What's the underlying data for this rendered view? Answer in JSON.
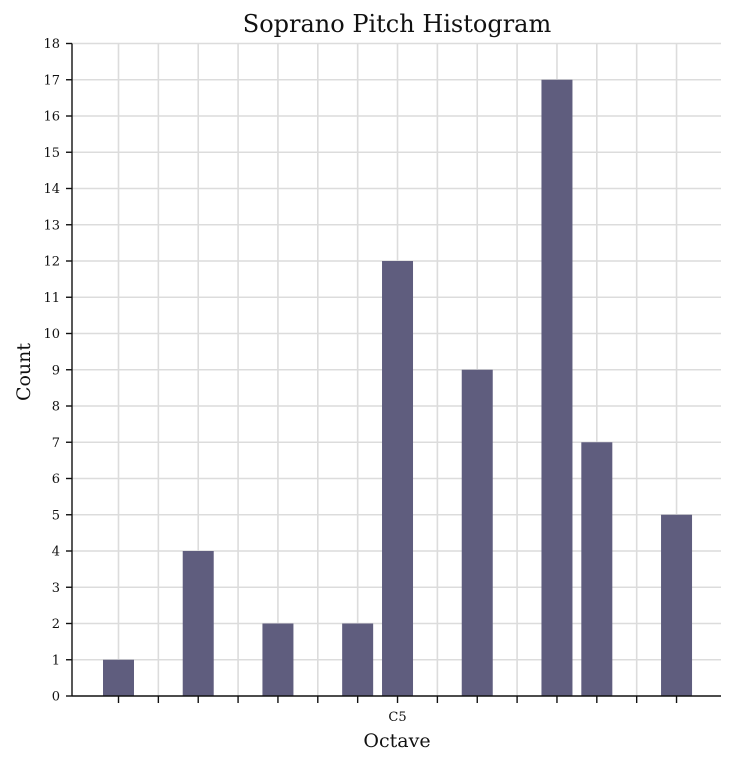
{
  "chart_data": {
    "type": "bar",
    "title": "Soprano Pitch Histogram",
    "xlabel": "Octave",
    "ylabel": "Count",
    "ylim": [
      0,
      18
    ],
    "yticks": [
      0,
      1,
      2,
      3,
      4,
      5,
      6,
      7,
      8,
      9,
      10,
      11,
      12,
      13,
      14,
      15,
      16,
      17,
      18
    ],
    "x_tick_count": 15,
    "x_tick_labels": [
      {
        "tick_index": 7,
        "label": "C5"
      }
    ],
    "bars": [
      {
        "tick_index": 0,
        "value": 1
      },
      {
        "tick_index": 2,
        "value": 4
      },
      {
        "tick_index": 4,
        "value": 2
      },
      {
        "tick_index": 6,
        "value": 2
      },
      {
        "tick_index": 7,
        "value": 12
      },
      {
        "tick_index": 9,
        "value": 9
      },
      {
        "tick_index": 11,
        "value": 17
      },
      {
        "tick_index": 12,
        "value": 7
      },
      {
        "tick_index": 14,
        "value": 5
      }
    ],
    "grid": true,
    "bar_color": "#5f5d7e"
  }
}
